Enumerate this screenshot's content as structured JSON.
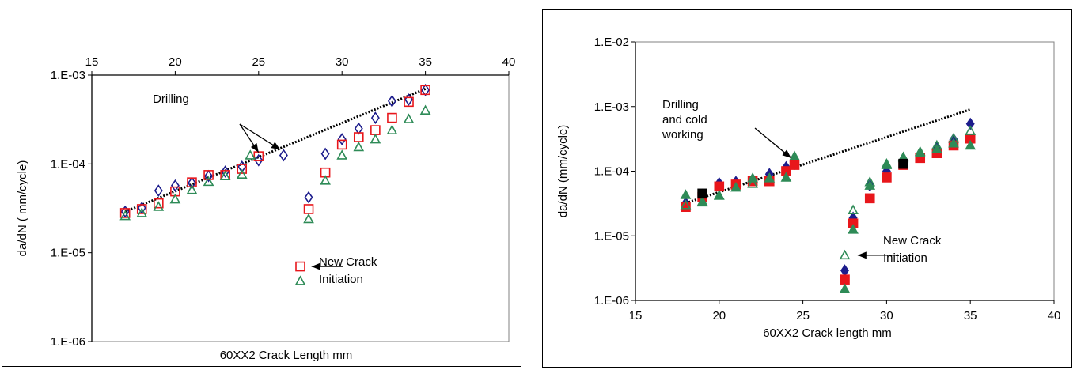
{
  "chart_data": [
    {
      "type": "scatter",
      "xlabel": "60XX2  Crack Length mm",
      "ylabel": "da/dN  ( mm/cycle)",
      "x_axis_position": "top",
      "xlim": [
        15,
        40
      ],
      "ylim": [
        1e-06,
        0.001
      ],
      "y_scale": "log",
      "x_ticks": [
        "15",
        "20",
        "25",
        "30",
        "35",
        "40"
      ],
      "y_ticks": [
        "1.E-06",
        "1.E-05",
        "1.E-04",
        "1.E-03"
      ],
      "grid": false,
      "series": [
        {
          "marker": "open-diamond",
          "color": "#1c1c8c",
          "x": [
            17,
            18,
            19,
            20,
            21,
            22,
            23,
            24,
            25,
            26.5,
            28,
            29,
            30,
            31,
            32,
            33,
            34,
            35
          ],
          "y": [
            2.9e-05,
            3.2e-05,
            5e-05,
            5.7e-05,
            6.1e-05,
            7.3e-05,
            8.2e-05,
            9.3e-05,
            0.00011,
            0.000125,
            4.2e-05,
            0.00013,
            0.00019,
            0.00025,
            0.00033,
            0.00051,
            0.00053,
            0.00068
          ]
        },
        {
          "marker": "open-square",
          "color": "#e8161b",
          "x": [
            17,
            18,
            19,
            20,
            21,
            22,
            23,
            24,
            25,
            27.5,
            28,
            29,
            30,
            31,
            32,
            33,
            34,
            35
          ],
          "y": [
            2.8e-05,
            3.1e-05,
            3.6e-05,
            4.9e-05,
            6.2e-05,
            7.5e-05,
            7.5e-05,
            8.8e-05,
            0.000122,
            7e-06,
            3.1e-05,
            8e-05,
            0.000165,
            0.0002,
            0.00024,
            0.00033,
            0.0005,
            0.00068
          ]
        },
        {
          "marker": "open-triangle",
          "color": "#2e8b57",
          "x": [
            17,
            18,
            19,
            20,
            21,
            22,
            23,
            24,
            24.5,
            27.5,
            28,
            29,
            30,
            31,
            32,
            33,
            34,
            35
          ],
          "y": [
            2.6e-05,
            2.8e-05,
            3.3e-05,
            4e-05,
            5.1e-05,
            6.3e-05,
            7.3e-05,
            7.6e-05,
            0.000125,
            4.8e-06,
            2.4e-05,
            6.5e-05,
            0.000125,
            0.000155,
            0.00019,
            0.00024,
            0.00032,
            0.0004
          ]
        }
      ],
      "trendline": {
        "style": "dotted",
        "color": "#000000",
        "x": [
          17,
          35
        ],
        "y": [
          2.9e-05,
          0.0007
        ]
      },
      "annotations": [
        {
          "text": "Drilling",
          "arrows_to": [
            [
              25,
              0.000135
            ],
            [
              26.3,
              0.000145
            ]
          ]
        },
        {
          "text": "New Crack\nInitiation",
          "arrow_to": [
            27.7,
            7e-06
          ]
        }
      ]
    },
    {
      "type": "scatter",
      "xlabel": "60XX2  Crack length  mm",
      "ylabel": "da/dN  (mm/cycle)",
      "x_axis_position": "bottom",
      "xlim": [
        15,
        40
      ],
      "ylim": [
        1e-06,
        0.01
      ],
      "y_scale": "log",
      "x_ticks": [
        "15",
        "20",
        "25",
        "30",
        "35",
        "40"
      ],
      "y_ticks": [
        "1.E-06",
        "1.E-05",
        "1.E-04",
        "1.E-03",
        "1.E-02"
      ],
      "plot_background": "#ffffff",
      "grid": false,
      "series": [
        {
          "marker": "filled-diamond",
          "color": "#1c1c8c",
          "x": [
            18,
            19,
            20,
            21,
            22,
            23,
            24,
            24.5,
            27.5,
            28,
            29,
            30,
            31,
            32,
            33,
            34,
            35
          ],
          "y": [
            3.2e-05,
            4.3e-05,
            6.5e-05,
            6.8e-05,
            7.5e-05,
            9e-05,
            0.000115,
            0.00013,
            2.9e-06,
            1.9e-05,
            6e-05,
            0.0001,
            0.00014,
            0.00018,
            0.00023,
            0.00031,
            0.00054
          ]
        },
        {
          "marker": "filled-square",
          "color": "#e8161b",
          "x": [
            18,
            19,
            20,
            21,
            22,
            23,
            24,
            24.5,
            27.5,
            28,
            29,
            30,
            31,
            32,
            33,
            34,
            35
          ],
          "y": [
            2.8e-05,
            4e-05,
            5.8e-05,
            6.2e-05,
            7e-05,
            7e-05,
            0.0001,
            0.000125,
            2.1e-06,
            1.55e-05,
            3.8e-05,
            8e-05,
            0.000125,
            0.00016,
            0.00019,
            0.00025,
            0.00032
          ]
        },
        {
          "marker": "filled-triangle",
          "color": "#2e8b57",
          "x": [
            18,
            19,
            20,
            21,
            22,
            23,
            24,
            24.5,
            27.5,
            28,
            29,
            30,
            31,
            32,
            33,
            34,
            35
          ],
          "y": [
            4.3e-05,
            3.4e-05,
            4.2e-05,
            5.6e-05,
            7.8e-05,
            7.8e-05,
            8e-05,
            0.00017,
            1.5e-06,
            1.25e-05,
            6e-05,
            0.000125,
            0.00016,
            0.00019,
            0.00022,
            0.00027,
            0.00025
          ]
        },
        {
          "marker": "open-triangle",
          "color": "#2e8b57",
          "x": [
            18,
            19,
            20,
            22,
            27.5,
            28,
            29,
            30,
            31,
            32,
            33,
            34,
            35
          ],
          "y": [
            3e-05,
            3.3e-05,
            4.2e-05,
            6.4e-05,
            5e-06,
            2.5e-05,
            6.8e-05,
            0.00013,
            0.000165,
            0.0002,
            0.00025,
            0.00032,
            0.00042
          ]
        },
        {
          "marker": "filled-square",
          "color": "#000000",
          "x": [
            19,
            31
          ],
          "y": [
            4.5e-05,
            0.00013
          ]
        }
      ],
      "trendline": {
        "style": "dotted",
        "color": "#000000",
        "x": [
          18,
          35
        ],
        "y": [
          3.2e-05,
          0.0009
        ]
      },
      "annotations": [
        {
          "text": "Drilling\nand cold\nworking",
          "arrow_to": [
            24.3,
            0.00016
          ]
        },
        {
          "text": "New Crack\nInitiation",
          "arrow_to": [
            27.8,
            5e-06
          ]
        }
      ]
    }
  ]
}
